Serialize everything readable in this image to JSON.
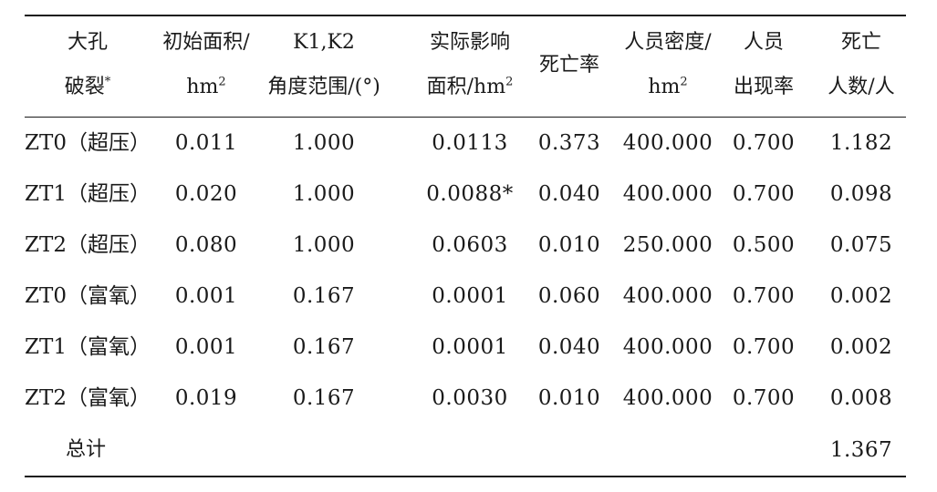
{
  "table": {
    "headers": [
      {
        "line1": "大孔",
        "line2": "破裂",
        "sup2": "*"
      },
      {
        "line1": "初始面积/",
        "line2": "hm",
        "sup2": "2"
      },
      {
        "line1": "K1,K2",
        "line2": "角度范围/(°)",
        "sup2": ""
      },
      {
        "line1": "实际影响",
        "line2": "面积/hm",
        "sup2": "2"
      },
      {
        "line1": "死亡率",
        "line2": "",
        "sup2": ""
      },
      {
        "line1": "人员密度/",
        "line2": "hm",
        "sup2": "2"
      },
      {
        "line1": "人员",
        "line2": "出现率",
        "sup2": ""
      },
      {
        "line1": "死亡",
        "line2": "人数/人",
        "sup2": ""
      }
    ],
    "rows": [
      [
        "ZT0（超压）",
        "0.011",
        "1.000",
        "0.0113",
        "0.373",
        "400.000",
        "0.700",
        "1.182"
      ],
      [
        "ZT1（超压）",
        "0.020",
        "1.000",
        "0.0088*",
        "0.040",
        "400.000",
        "0.700",
        "0.098"
      ],
      [
        "ZT2（超压）",
        "0.080",
        "1.000",
        "0.0603",
        "0.010",
        "250.000",
        "0.500",
        "0.075"
      ],
      [
        "ZT0（富氧）",
        "0.001",
        "0.167",
        "0.0001",
        "0.060",
        "400.000",
        "0.700",
        "0.002"
      ],
      [
        "ZT1（富氧）",
        "0.001",
        "0.167",
        "0.0001",
        "0.040",
        "400.000",
        "0.700",
        "0.002"
      ],
      [
        "ZT2（富氧）",
        "0.019",
        "0.167",
        "0.0030",
        "0.010",
        "400.000",
        "0.700",
        "0.008"
      ]
    ],
    "total": {
      "label": "总计",
      "value": "1.367"
    }
  }
}
